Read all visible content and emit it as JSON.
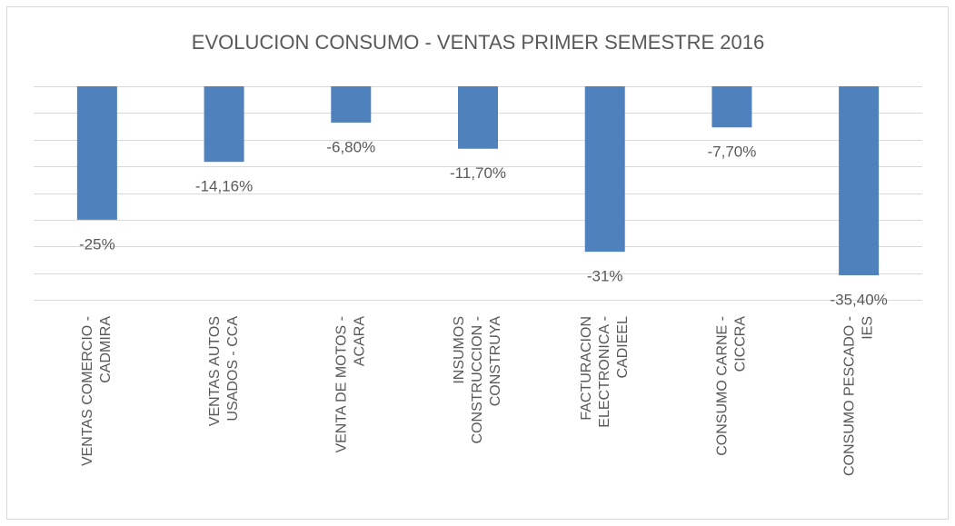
{
  "chart_data": {
    "type": "bar",
    "title": "EVOLUCION CONSUMO - VENTAS PRIMER SEMESTRE 2016",
    "categories": [
      [
        "VENTAS COMERCIO -",
        "CADMIRA"
      ],
      [
        "VENTAS AUTOS",
        "USADOS - CCA"
      ],
      [
        "VENTA DE MOTOS -",
        "ACARA"
      ],
      [
        "INSUMOS",
        "CONSTRUCCION -",
        "CONSTRUYA"
      ],
      [
        "FACTURACION",
        "ELECTRONICA -",
        "CADIEEL"
      ],
      [
        "CONSUMO CARNE -",
        "CICCRA"
      ],
      [
        "CONSUMO PESCADO -",
        "IES"
      ]
    ],
    "values": [
      -25,
      -14.16,
      -6.8,
      -11.7,
      -31,
      -7.7,
      -35.4
    ],
    "value_labels": [
      "-25%",
      "-14,16%",
      "-6,80%",
      "-11,70%",
      "-31%",
      "-7,70%",
      "-35,40%"
    ],
    "color": "#4f81bd",
    "ylim": [
      -40,
      0
    ],
    "yticks": [
      0,
      -5,
      -10,
      -15,
      -20,
      -25,
      -30,
      -35,
      -40
    ],
    "grid": true
  }
}
